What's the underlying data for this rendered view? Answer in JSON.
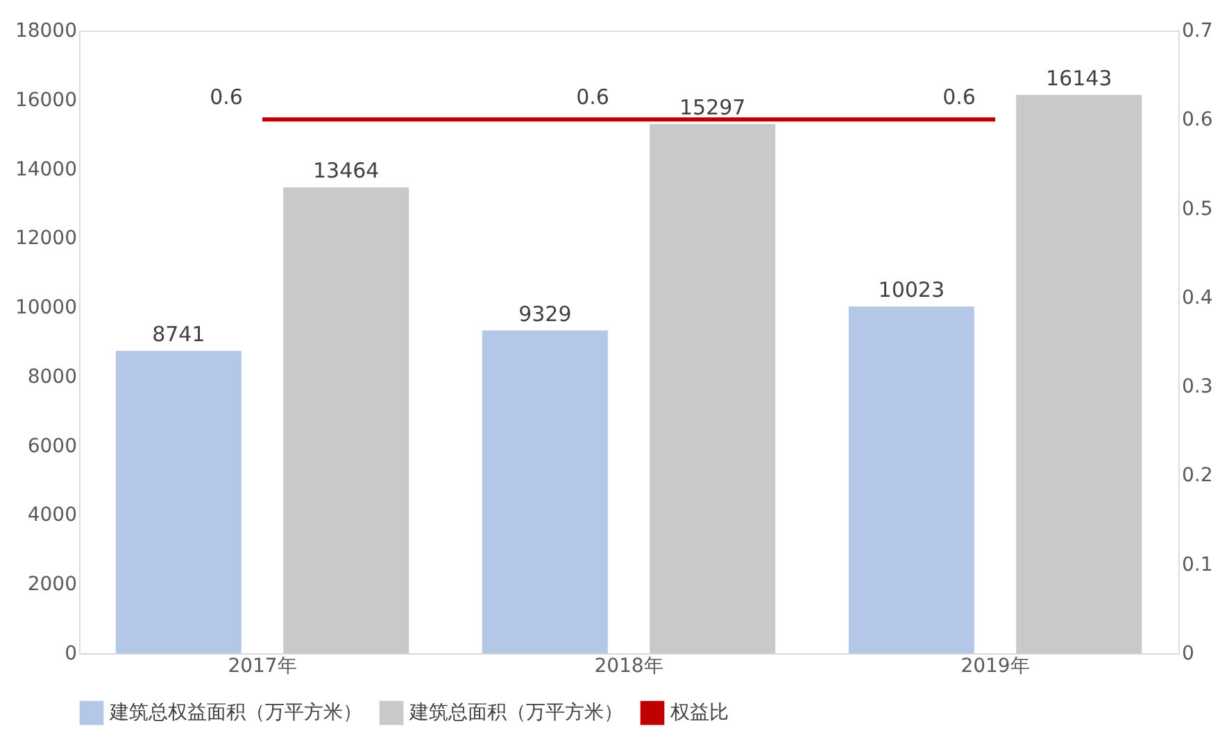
{
  "chart_data": {
    "type": "bar",
    "categories": [
      "2017年",
      "2018年",
      "2019年"
    ],
    "series": [
      {
        "name": "建筑总权益面积（万平方米）",
        "color": "#b4c7e7",
        "values": [
          8741,
          9329,
          10023
        ]
      },
      {
        "name": "建筑总面积（万平方米）",
        "color": "#c9c9c9",
        "values": [
          13464,
          15297,
          16143
        ]
      },
      {
        "name": "权益比",
        "color": "#c00000",
        "type": "line",
        "axis": "y2",
        "values": [
          0.6,
          0.6,
          0.6
        ]
      }
    ],
    "ylim": [
      0,
      18000
    ],
    "yticks": [
      0,
      2000,
      4000,
      6000,
      8000,
      10000,
      12000,
      14000,
      16000,
      18000
    ],
    "y2lim": [
      0,
      0.7
    ],
    "y2ticks": [
      0,
      0.1,
      0.2,
      0.3,
      0.4,
      0.5,
      0.6,
      0.7
    ],
    "data_labels": true,
    "grid": false,
    "legend": "bottom"
  }
}
